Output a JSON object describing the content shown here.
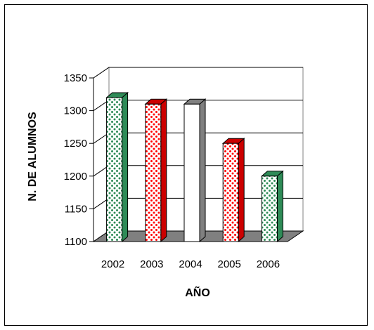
{
  "chart_data": {
    "type": "bar",
    "style": "3d-column",
    "categories": [
      "2002",
      "2003",
      "2004",
      "2005",
      "2006"
    ],
    "values": [
      1320,
      1310,
      1310,
      1250,
      1200
    ],
    "xlabel": "AÑO",
    "ylabel": "N. DE ALUMNOS",
    "ylim": [
      1100,
      1350
    ],
    "yticks": [
      1100,
      1150,
      1200,
      1250,
      1300,
      1350
    ],
    "grid": true,
    "legend": "none",
    "bar_patterns": [
      "green-dots",
      "red-dots",
      "plain-white",
      "red-dots",
      "green-dots"
    ],
    "colors": {
      "green_dots": "#2e8b57",
      "red_dots": "#ff0000",
      "floor": "#808080",
      "grid": "#000000",
      "wall_side": "#ffffff"
    }
  }
}
